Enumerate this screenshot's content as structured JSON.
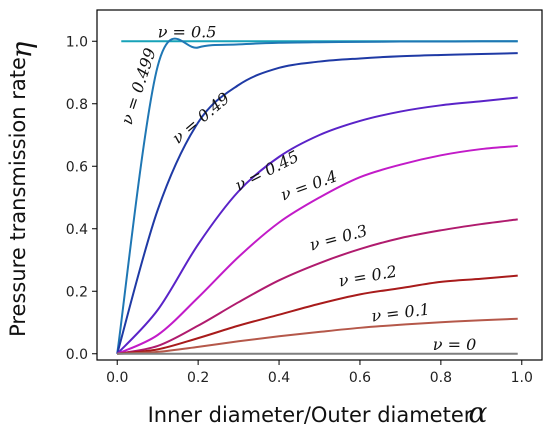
{
  "chart_data": {
    "type": "line",
    "xlabel": "Inner diameter/Outer diameter",
    "xlabel_symbol": "α",
    "ylabel": "Pressure transmission rate",
    "ylabel_symbol": "η",
    "xlim": [
      -0.05,
      1.05
    ],
    "ylim": [
      -0.02,
      1.1
    ],
    "xticks": [
      0.0,
      0.2,
      0.4,
      0.6,
      0.8,
      1.0
    ],
    "xtick_labels": [
      "0.0",
      "0.2",
      "0.4",
      "0.6",
      "0.8",
      "1.0"
    ],
    "yticks": [
      0.0,
      0.2,
      0.4,
      0.6,
      0.8,
      1.0
    ],
    "ytick_labels": [
      "0.0",
      "0.2",
      "0.4",
      "0.6",
      "0.8",
      "1.0"
    ],
    "grid": false,
    "legend": "none",
    "x": [
      0.0,
      0.1,
      0.2,
      0.3,
      0.4,
      0.5,
      0.6,
      0.7,
      0.8,
      0.9,
      0.99
    ],
    "series": [
      {
        "name": "ν = 0.5",
        "color": "#17a2b8",
        "label_text": "ν = 0.5",
        "values": [
          1.0,
          1.0,
          1.0,
          1.0,
          1.0,
          1.0,
          1.0,
          1.0,
          1.0,
          1.0,
          1.0
        ]
      },
      {
        "name": "ν = 0.499",
        "color": "#1f77b4",
        "label_text": "ν = 0.499",
        "values": [
          0.0,
          0.92,
          0.98,
          0.99,
          0.995,
          0.997,
          0.998,
          0.999,
          0.999,
          1.0,
          1.0
        ]
      },
      {
        "name": "ν = 0.49",
        "color": "#1f3aa5",
        "label_text": "ν = 0.49",
        "values": [
          0.0,
          0.46,
          0.74,
          0.86,
          0.915,
          0.935,
          0.945,
          0.952,
          0.956,
          0.959,
          0.962
        ]
      },
      {
        "name": "ν = 0.45",
        "color": "#5a23c8",
        "label_text": "ν = 0.45",
        "values": [
          0.0,
          0.14,
          0.35,
          0.52,
          0.63,
          0.7,
          0.745,
          0.775,
          0.795,
          0.808,
          0.82
        ]
      },
      {
        "name": "ν = 0.4",
        "color": "#c21bc8",
        "label_text": "ν = 0.4",
        "values": [
          0.0,
          0.06,
          0.18,
          0.31,
          0.42,
          0.5,
          0.565,
          0.605,
          0.635,
          0.655,
          0.665
        ]
      },
      {
        "name": "ν = 0.3",
        "color": "#b01b6e",
        "label_text": "ν = 0.3",
        "values": [
          0.0,
          0.025,
          0.09,
          0.165,
          0.235,
          0.29,
          0.335,
          0.37,
          0.395,
          0.415,
          0.43
        ]
      },
      {
        "name": "ν = 0.2",
        "color": "#a81b1b",
        "label_text": "ν = 0.2",
        "values": [
          0.0,
          0.014,
          0.05,
          0.09,
          0.125,
          0.16,
          0.19,
          0.21,
          0.23,
          0.24,
          0.25
        ]
      },
      {
        "name": "ν = 0.1",
        "color": "#b5584a",
        "label_text": "ν = 0.1",
        "values": [
          0.0,
          0.006,
          0.022,
          0.04,
          0.056,
          0.07,
          0.083,
          0.093,
          0.101,
          0.107,
          0.112
        ]
      },
      {
        "name": "ν = 0",
        "color": "#7f7f7f",
        "label_text": "ν = 0",
        "values": [
          0.0,
          0.0,
          0.0,
          0.0,
          0.0,
          0.0,
          0.0,
          0.0,
          0.0,
          0.0,
          0.0
        ]
      }
    ]
  }
}
